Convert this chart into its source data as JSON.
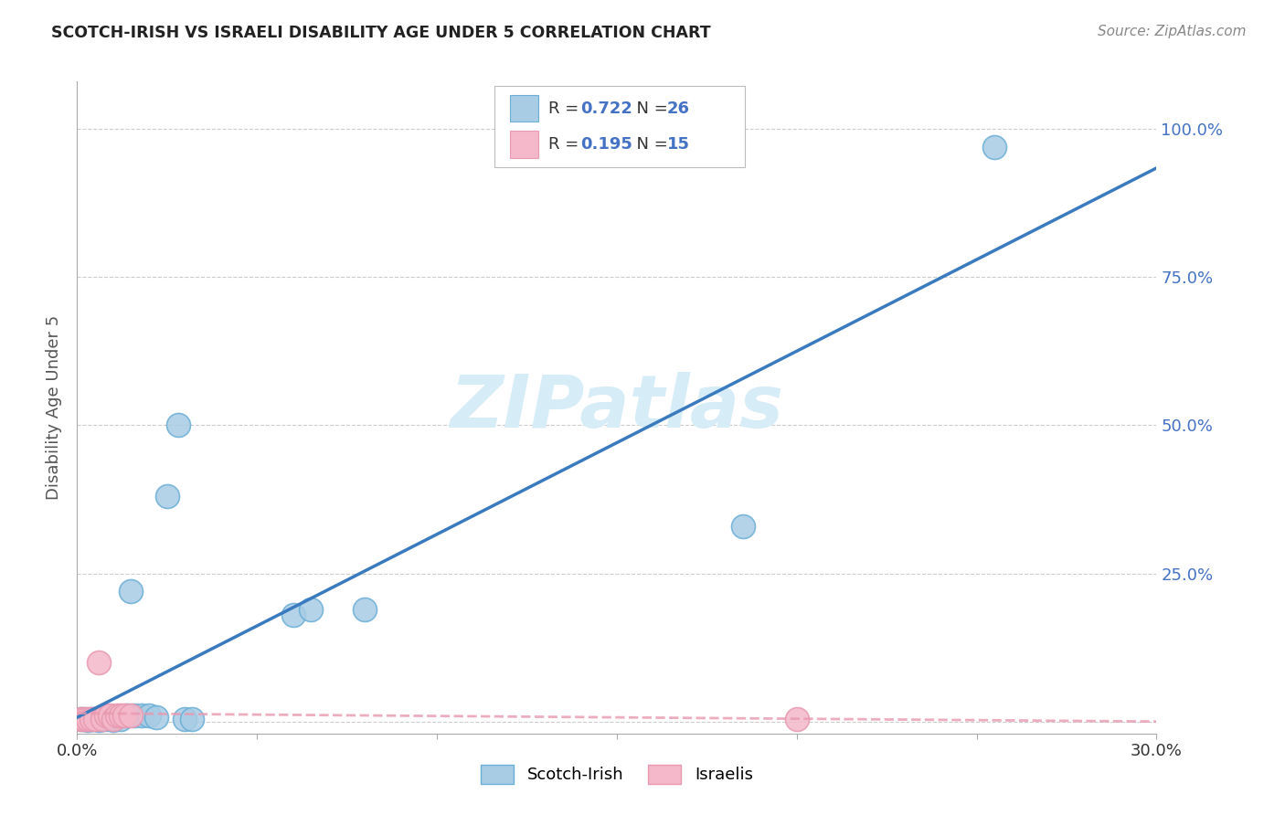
{
  "title": "SCOTCH-IRISH VS ISRAELI DISABILITY AGE UNDER 5 CORRELATION CHART",
  "source": "Source: ZipAtlas.com",
  "ylabel_label": "Disability Age Under 5",
  "xlim": [
    0.0,
    0.3
  ],
  "ylim": [
    -0.02,
    1.08
  ],
  "x_ticks": [
    0.0,
    0.05,
    0.1,
    0.15,
    0.2,
    0.25,
    0.3
  ],
  "x_tick_labels": [
    "0.0%",
    "",
    "",
    "",
    "",
    "",
    "30.0%"
  ],
  "y_ticks": [
    0.0,
    0.25,
    0.5,
    0.75,
    1.0
  ],
  "y_tick_labels": [
    "",
    "25.0%",
    "50.0%",
    "75.0%",
    "100.0%"
  ],
  "scotch_irish_points": [
    [
      0.001,
      0.005
    ],
    [
      0.002,
      0.004
    ],
    [
      0.003,
      0.003
    ],
    [
      0.004,
      0.005
    ],
    [
      0.005,
      0.004
    ],
    [
      0.006,
      0.003
    ],
    [
      0.007,
      0.005
    ],
    [
      0.008,
      0.004
    ],
    [
      0.009,
      0.006
    ],
    [
      0.01,
      0.003
    ],
    [
      0.012,
      0.005
    ],
    [
      0.014,
      0.01
    ],
    [
      0.015,
      0.22
    ],
    [
      0.016,
      0.01
    ],
    [
      0.018,
      0.01
    ],
    [
      0.02,
      0.01
    ],
    [
      0.022,
      0.008
    ],
    [
      0.025,
      0.38
    ],
    [
      0.028,
      0.5
    ],
    [
      0.03,
      0.005
    ],
    [
      0.032,
      0.005
    ],
    [
      0.06,
      0.18
    ],
    [
      0.065,
      0.19
    ],
    [
      0.08,
      0.19
    ],
    [
      0.185,
      0.33
    ],
    [
      0.255,
      0.97
    ]
  ],
  "israeli_points": [
    [
      0.001,
      0.005
    ],
    [
      0.002,
      0.005
    ],
    [
      0.003,
      0.005
    ],
    [
      0.004,
      0.004
    ],
    [
      0.005,
      0.005
    ],
    [
      0.006,
      0.1
    ],
    [
      0.007,
      0.005
    ],
    [
      0.008,
      0.01
    ],
    [
      0.009,
      0.01
    ],
    [
      0.01,
      0.005
    ],
    [
      0.011,
      0.01
    ],
    [
      0.012,
      0.01
    ],
    [
      0.013,
      0.01
    ],
    [
      0.015,
      0.01
    ],
    [
      0.2,
      0.005
    ]
  ],
  "scotch_R": 0.722,
  "scotch_N": 26,
  "israeli_R": 0.195,
  "israeli_N": 15,
  "scotch_color": "#a8cce4",
  "scotch_edge_color": "#6aaed6",
  "scotch_line_color": "#3a7abf",
  "israeli_color": "#f4b8ca",
  "israeli_edge_color": "#e899b0",
  "israeli_line_color": "#e899b0",
  "watermark_color": "#d6ecf7",
  "background_color": "#ffffff",
  "grid_color": "#cccccc",
  "right_tick_color": "#4472c4",
  "title_color": "#222222",
  "source_color": "#888888"
}
